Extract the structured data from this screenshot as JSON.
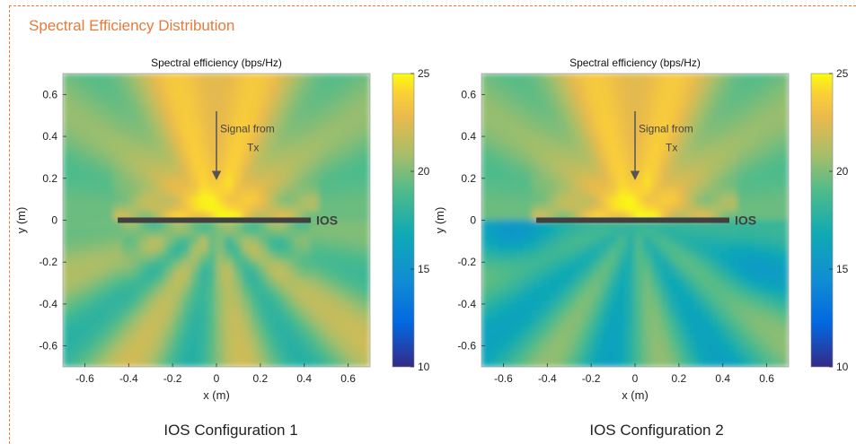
{
  "section_title": "Spectral Efficiency Distribution",
  "colors": {
    "accent": "#e87a3a",
    "ios_bar": "#404040",
    "colormap": "parula"
  },
  "chart_data": [
    {
      "type": "heatmap",
      "title": "Spectral efficiency (bps/Hz)",
      "xlabel": "x (m)",
      "ylabel": "y (m)",
      "xlim": [
        -0.7,
        0.7
      ],
      "ylim": [
        -0.7,
        0.7
      ],
      "xticks": [
        -0.6,
        -0.4,
        -0.2,
        0,
        0.2,
        0.4,
        0.6
      ],
      "yticks": [
        0.6,
        0.4,
        0.2,
        0,
        -0.2,
        -0.4,
        -0.6
      ],
      "xtick_labels": [
        "-0.6",
        "-0.4",
        "-0.2",
        "0",
        "0.2",
        "0.4",
        "0.6"
      ],
      "ytick_labels": [
        "0.6",
        "0.4",
        "0.2",
        "0",
        "-0.2",
        "-0.4",
        "-0.6"
      ],
      "colorbar": {
        "range": [
          10,
          25
        ],
        "ticks": [
          10,
          15,
          20,
          25
        ],
        "tick_labels": [
          "10",
          "15",
          "20",
          "25"
        ]
      },
      "ios": {
        "x_range": [
          -0.45,
          0.43
        ],
        "y": 0,
        "label": "IOS"
      },
      "annotation": {
        "line1": "Signal from",
        "line2": "Tx",
        "arrow_from": [
          0,
          0.52
        ],
        "arrow_to": [
          0,
          0.2
        ]
      },
      "configuration": 1,
      "caption": "IOS Configuration 1"
    },
    {
      "type": "heatmap",
      "title": "Spectral efficiency (bps/Hz)",
      "xlabel": "x (m)",
      "ylabel": "y (m)",
      "xlim": [
        -0.7,
        0.7
      ],
      "ylim": [
        -0.7,
        0.7
      ],
      "xticks": [
        -0.6,
        -0.4,
        -0.2,
        0,
        0.2,
        0.4,
        0.6
      ],
      "yticks": [
        0.6,
        0.4,
        0.2,
        0,
        -0.2,
        -0.4,
        -0.6
      ],
      "xtick_labels": [
        "-0.6",
        "-0.4",
        "-0.2",
        "0",
        "0.2",
        "0.4",
        "0.6"
      ],
      "ytick_labels": [
        "0.6",
        "0.4",
        "0.2",
        "0",
        "-0.2",
        "-0.4",
        "-0.6"
      ],
      "colorbar": {
        "range": [
          10,
          25
        ],
        "ticks": [
          10,
          15,
          20,
          25
        ],
        "tick_labels": [
          "10",
          "15",
          "20",
          "25"
        ]
      },
      "ios": {
        "x_range": [
          -0.45,
          0.43
        ],
        "y": 0,
        "label": "IOS"
      },
      "annotation": {
        "line1": "Signal from",
        "line2": "Tx",
        "arrow_from": [
          0,
          0.52
        ],
        "arrow_to": [
          0,
          0.2
        ]
      },
      "configuration": 2,
      "caption": "IOS Configuration 2"
    }
  ]
}
